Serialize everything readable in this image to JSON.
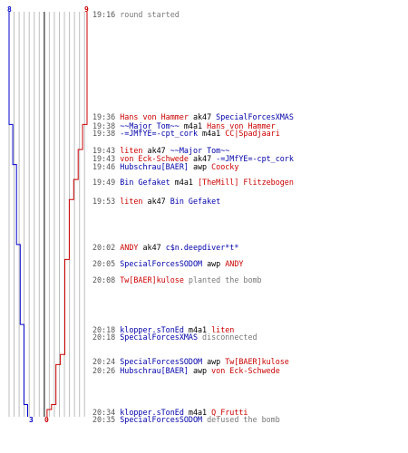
{
  "colors": {
    "ct": "#0000cc",
    "t": "#cc0000",
    "grid": "#bdbdbd",
    "midline": "#555555",
    "text_gray": "#777777"
  },
  "counts": {
    "ct_start": "8",
    "t_start": "9",
    "ct_end": "3",
    "t_end": "0"
  },
  "chart_data": {
    "type": "line",
    "x_unit": "players alive",
    "x_range": [
      0,
      9
    ],
    "series": [
      {
        "team": "ct",
        "points": [
          {
            "time": "19:16",
            "alive": 8
          },
          {
            "time": "19:36",
            "alive": 8
          },
          {
            "time": "19:38",
            "alive": 7
          },
          {
            "time": "19:46",
            "alive": 6
          },
          {
            "time": "20:02",
            "alive": 5
          },
          {
            "time": "20:18",
            "alive": 4
          },
          {
            "time": "20:34",
            "alive": 3
          }
        ]
      },
      {
        "team": "t",
        "points": [
          {
            "time": "19:16",
            "alive": 9
          },
          {
            "time": "19:36",
            "alive": 9
          },
          {
            "time": "19:38",
            "alive": 8
          },
          {
            "time": "19:43",
            "alive": 7
          },
          {
            "time": "19:49",
            "alive": 6
          },
          {
            "time": "19:53",
            "alive": 5
          },
          {
            "time": "20:05",
            "alive": 4
          },
          {
            "time": "20:24",
            "alive": 3
          },
          {
            "time": "20:26",
            "alive": 2
          },
          {
            "time": "20:34",
            "alive": 1
          },
          {
            "time": "20:35",
            "alive": 0
          }
        ]
      }
    ]
  },
  "events": [
    {
      "time": "19:16",
      "parts": [
        {
          "text": "round started",
          "c": "gray"
        }
      ]
    },
    {
      "time": "19:36",
      "parts": [
        {
          "text": "Hans von Hammer",
          "c": "red"
        },
        {
          "text": " ak47 ",
          "c": "black"
        },
        {
          "text": "SpecialForcesXMAS",
          "c": "blue"
        }
      ]
    },
    {
      "time": "19:38",
      "parts": [
        {
          "text": "~~Major Tom~~",
          "c": "blue"
        },
        {
          "text": " m4a1 ",
          "c": "black"
        },
        {
          "text": "Hans von Hammer",
          "c": "red"
        }
      ]
    },
    {
      "time": "19:38",
      "parts": [
        {
          "text": "-=JMfYE=-cpt_cork",
          "c": "blue"
        },
        {
          "text": " m4a1 ",
          "c": "black"
        },
        {
          "text": "CC|Spadjaari",
          "c": "red"
        }
      ]
    },
    {
      "time": "19:43",
      "parts": [
        {
          "text": "liten",
          "c": "red"
        },
        {
          "text": " ak47 ",
          "c": "black"
        },
        {
          "text": "~~Major Tom~~",
          "c": "blue"
        }
      ]
    },
    {
      "time": "19:43",
      "parts": [
        {
          "text": "von Eck-Schwede",
          "c": "red"
        },
        {
          "text": " ak47 ",
          "c": "black"
        },
        {
          "text": "-=JMfYE=-cpt_cork",
          "c": "blue"
        }
      ]
    },
    {
      "time": "19:46",
      "parts": [
        {
          "text": "Hubschrau[BAER]",
          "c": "blue"
        },
        {
          "text": " awp ",
          "c": "black"
        },
        {
          "text": "Coocky",
          "c": "red"
        }
      ]
    },
    {
      "time": "19:49",
      "parts": [
        {
          "text": "Bin Gefaket",
          "c": "blue"
        },
        {
          "text": " m4a1 ",
          "c": "black"
        },
        {
          "text": "[TheMill] Flitzebogen",
          "c": "red"
        }
      ]
    },
    {
      "time": "19:53",
      "parts": [
        {
          "text": "liten",
          "c": "red"
        },
        {
          "text": " ak47 ",
          "c": "black"
        },
        {
          "text": "Bin Gefaket",
          "c": "blue"
        }
      ]
    },
    {
      "time": "20:02",
      "parts": [
        {
          "text": "ANDY",
          "c": "red"
        },
        {
          "text": " ak47 ",
          "c": "black"
        },
        {
          "text": "c$n.deepdiver*t*",
          "c": "blue"
        }
      ]
    },
    {
      "time": "20:05",
      "parts": [
        {
          "text": "SpecialForcesSODOM",
          "c": "blue"
        },
        {
          "text": " awp ",
          "c": "black"
        },
        {
          "text": "ANDY",
          "c": "red"
        }
      ]
    },
    {
      "time": "20:08",
      "parts": [
        {
          "text": "Tw[BAER]kulose",
          "c": "red"
        },
        {
          "text": " planted the bomb",
          "c": "gray"
        }
      ]
    },
    {
      "time": "20:18",
      "parts": [
        {
          "text": "klopper.sTonEd",
          "c": "blue"
        },
        {
          "text": " m4a1 ",
          "c": "black"
        },
        {
          "text": "liten",
          "c": "red"
        }
      ]
    },
    {
      "time": "20:18",
      "parts": [
        {
          "text": "SpecialForcesXMAS",
          "c": "blue"
        },
        {
          "text": " disconnected",
          "c": "gray"
        }
      ]
    },
    {
      "time": "20:24",
      "parts": [
        {
          "text": "SpecialForcesSODOM",
          "c": "blue"
        },
        {
          "text": " awp ",
          "c": "black"
        },
        {
          "text": "Tw[BAER]kulose",
          "c": "red"
        }
      ]
    },
    {
      "time": "20:26",
      "parts": [
        {
          "text": "Hubschrau[BAER]",
          "c": "blue"
        },
        {
          "text": " awp ",
          "c": "black"
        },
        {
          "text": "von Eck-Schwede",
          "c": "red"
        }
      ]
    },
    {
      "time": "20:34",
      "parts": [
        {
          "text": "klopper.sTonEd",
          "c": "blue"
        },
        {
          "text": " m4a1 ",
          "c": "black"
        },
        {
          "text": "Q_Frutti",
          "c": "red"
        }
      ]
    },
    {
      "time": "20:35",
      "parts": [
        {
          "text": "SpecialForcesSODOM",
          "c": "blue"
        },
        {
          "text": " defused the bomb",
          "c": "gray"
        }
      ]
    }
  ]
}
